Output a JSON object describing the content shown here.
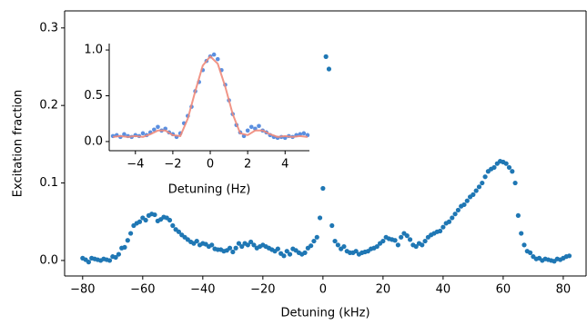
{
  "chart_data": [
    {
      "type": "scatter",
      "xlabel": "Detuning (kHz)",
      "ylabel": "Excitation fraction",
      "xlim": [
        -86,
        87.6
      ],
      "ylim": [
        -0.02,
        0.322
      ],
      "xticks": [
        {
          "value": -80,
          "label": "−80"
        },
        {
          "value": -60,
          "label": "−60"
        },
        {
          "value": -40,
          "label": "−40"
        },
        {
          "value": -20,
          "label": "−20"
        },
        0,
        20,
        40,
        60,
        80
      ],
      "yticks": [
        {
          "value": 0,
          "label": "0.0"
        },
        0.1,
        0.2,
        0.3
      ],
      "series": [
        {
          "color": "#1f77b4",
          "x": [
            -80,
            -79,
            -78,
            -77,
            -76,
            -75,
            -74,
            -73,
            -72,
            -71,
            -70,
            -69,
            -68,
            -67,
            -66,
            -65,
            -64,
            -63,
            -62,
            -61,
            -60,
            -59,
            -58,
            -57,
            -56,
            -55,
            -54,
            -53,
            -52,
            -51,
            -50,
            -49,
            -48,
            -47,
            -46,
            -45,
            -44,
            -43,
            -42,
            -41,
            -40,
            -39,
            -38,
            -37,
            -36,
            -35,
            -34,
            -33,
            -32,
            -31,
            -30,
            -29,
            -28,
            -27,
            -26,
            -25,
            -24,
            -23,
            -22,
            -21,
            -20,
            -19,
            -18,
            -17,
            -16,
            -15,
            -14,
            -13,
            -12,
            -11,
            -10,
            -9,
            -8,
            -7,
            -6,
            -5,
            -4,
            -3,
            -2,
            -1,
            0,
            1,
            2,
            3,
            4,
            5,
            6,
            7,
            8,
            9,
            10,
            11,
            12,
            13,
            14,
            15,
            16,
            17,
            18,
            19,
            20,
            21,
            22,
            23,
            24,
            25,
            26,
            27,
            28,
            29,
            30,
            31,
            32,
            33,
            34,
            35,
            36,
            37,
            38,
            39,
            40,
            41,
            42,
            43,
            44,
            45,
            46,
            47,
            48,
            49,
            50,
            51,
            52,
            53,
            54,
            55,
            56,
            57,
            58,
            59,
            60,
            61,
            62,
            63,
            64,
            65,
            66,
            67,
            68,
            69,
            70,
            71,
            72,
            73,
            74,
            75,
            76,
            77,
            78,
            79,
            80,
            81,
            82
          ],
          "values": [
            0.003,
            0.001,
            -0.002,
            0.003,
            0.002,
            0.001,
            0,
            0.002,
            0.001,
            0,
            0.005,
            0.004,
            0.008,
            0.016,
            0.017,
            0.026,
            0.035,
            0.045,
            0.048,
            0.05,
            0.055,
            0.052,
            0.058,
            0.06,
            0.059,
            0.051,
            0.053,
            0.056,
            0.055,
            0.052,
            0.045,
            0.04,
            0.037,
            0.033,
            0.03,
            0.027,
            0.024,
            0.022,
            0.025,
            0.02,
            0.022,
            0.021,
            0.018,
            0.02,
            0.015,
            0.014,
            0.014,
            0.012,
            0.013,
            0.016,
            0.011,
            0.016,
            0.022,
            0.018,
            0.022,
            0.02,
            0.024,
            0.02,
            0.016,
            0.018,
            0.02,
            0.018,
            0.016,
            0.014,
            0.012,
            0.015,
            0.009,
            0.006,
            0.012,
            0.008,
            0.015,
            0.013,
            0.01,
            0.008,
            0.01,
            0.016,
            0.019,
            0.025,
            0.03,
            0.055,
            0.093,
            0.263,
            0.247,
            0.045,
            0.025,
            0.02,
            0.015,
            0.018,
            0.012,
            0.01,
            0.01,
            0.012,
            0.008,
            0.01,
            0.011,
            0.012,
            0.015,
            0.016,
            0.018,
            0.022,
            0.025,
            0.03,
            0.028,
            0.027,
            0.026,
            0.02,
            0.03,
            0.035,
            0.032,
            0.027,
            0.02,
            0.018,
            0.022,
            0.02,
            0.025,
            0.03,
            0.033,
            0.035,
            0.037,
            0.038,
            0.043,
            0.048,
            0.05,
            0.055,
            0.06,
            0.065,
            0.07,
            0.072,
            0.077,
            0.082,
            0.085,
            0.09,
            0.095,
            0.1,
            0.108,
            0.115,
            0.118,
            0.12,
            0.125,
            0.128,
            0.127,
            0.125,
            0.12,
            0.115,
            0.1,
            0.058,
            0.035,
            0.02,
            0.012,
            0.01,
            0.005,
            0.002,
            0.003,
            0,
            0.002,
            0.001,
            0,
            -0.001,
            0.002,
            0.001,
            0.003,
            0.005,
            0.006
          ]
        }
      ]
    },
    {
      "type": "scatter",
      "xlabel": "Detuning (Hz)",
      "xlim": [
        -5.4,
        5.3
      ],
      "ylim": [
        -0.1,
        1.07
      ],
      "xticks": [
        {
          "value": -4,
          "label": "−4"
        },
        {
          "value": -2,
          "label": "−2"
        },
        0,
        2,
        4
      ],
      "yticks": [
        {
          "value": 0,
          "label": "0.0"
        },
        0.5,
        {
          "value": 1,
          "label": "1.0"
        }
      ],
      "series": [
        {
          "color": "#5b8fe0",
          "x": [
            -5.2,
            -5.0,
            -4.8,
            -4.6,
            -4.4,
            -4.2,
            -4.0,
            -3.8,
            -3.6,
            -3.4,
            -3.2,
            -3.0,
            -2.8,
            -2.6,
            -2.4,
            -2.2,
            -2.0,
            -1.8,
            -1.6,
            -1.4,
            -1.2,
            -1.0,
            -0.8,
            -0.6,
            -0.4,
            -0.2,
            0,
            0.2,
            0.4,
            0.6,
            0.8,
            1.0,
            1.2,
            1.4,
            1.6,
            1.8,
            2.0,
            2.2,
            2.4,
            2.6,
            2.8,
            3.0,
            3.2,
            3.4,
            3.6,
            3.8,
            4.0,
            4.2,
            4.4,
            4.6,
            4.8,
            5.0,
            5.2
          ],
          "values": [
            0.06,
            0.07,
            0.05,
            0.08,
            0.06,
            0.05,
            0.07,
            0.06,
            0.09,
            0.07,
            0.1,
            0.13,
            0.16,
            0.12,
            0.14,
            0.1,
            0.08,
            0.05,
            0.09,
            0.2,
            0.28,
            0.38,
            0.55,
            0.65,
            0.78,
            0.88,
            0.93,
            0.95,
            0.9,
            0.78,
            0.62,
            0.45,
            0.3,
            0.18,
            0.1,
            0.06,
            0.12,
            0.16,
            0.14,
            0.17,
            0.12,
            0.1,
            0.07,
            0.05,
            0.04,
            0.05,
            0.04,
            0.06,
            0.05,
            0.07,
            0.08,
            0.09,
            0.07
          ]
        },
        {
          "type": "line",
          "color": "#f08a7a",
          "x": [
            -5.2,
            -4.8,
            -4.4,
            -4.0,
            -3.6,
            -3.2,
            -2.8,
            -2.4,
            -2.0,
            -1.6,
            -1.2,
            -0.8,
            -0.4,
            0,
            0.4,
            0.8,
            1.2,
            1.6,
            2.0,
            2.4,
            2.8,
            3.2,
            3.6,
            4.0,
            4.4,
            4.8,
            5.2
          ],
          "values": [
            0.05,
            0.06,
            0.05,
            0.06,
            0.05,
            0.08,
            0.12,
            0.12,
            0.07,
            0.06,
            0.25,
            0.55,
            0.83,
            0.93,
            0.85,
            0.6,
            0.3,
            0.09,
            0.07,
            0.12,
            0.12,
            0.08,
            0.05,
            0.06,
            0.05,
            0.06,
            0.05
          ]
        }
      ]
    }
  ]
}
